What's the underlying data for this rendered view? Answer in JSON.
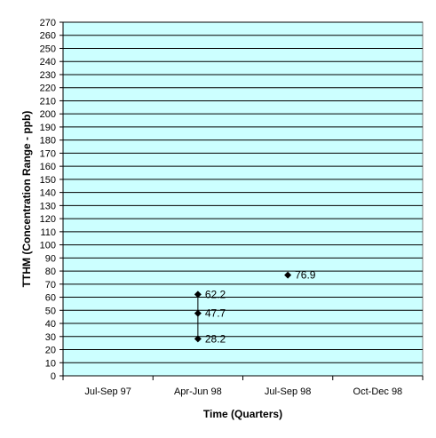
{
  "chart_data": {
    "type": "scatter",
    "title": "",
    "xlabel": "Time (Quarters)",
    "ylabel": "TTHM (Concentration Range - ppb)",
    "categories": [
      "Jul-Sep 97",
      "Apr-Jun 98",
      "Jul-Sep 98",
      "Oct-Dec 98"
    ],
    "ylim": [
      0,
      270
    ],
    "ytick_step": 10,
    "grid": true,
    "legend": "none",
    "series": [
      {
        "points": [
          {
            "category": "Apr-Jun 98",
            "y": 62.2,
            "label": "62.2"
          },
          {
            "category": "Apr-Jun 98",
            "y": 47.7,
            "label": "47.7"
          },
          {
            "category": "Apr-Jun 98",
            "y": 28.2,
            "label": "28.2"
          },
          {
            "category": "Jul-Sep 98",
            "y": 76.9,
            "label": "76.9"
          }
        ]
      }
    ],
    "ranges": [
      {
        "category": "Apr-Jun 98",
        "low": 28.2,
        "high": 62.2
      }
    ],
    "colors": {
      "plot_background": "#ccffff",
      "gridline": "#000000",
      "marker": "#000000"
    }
  }
}
